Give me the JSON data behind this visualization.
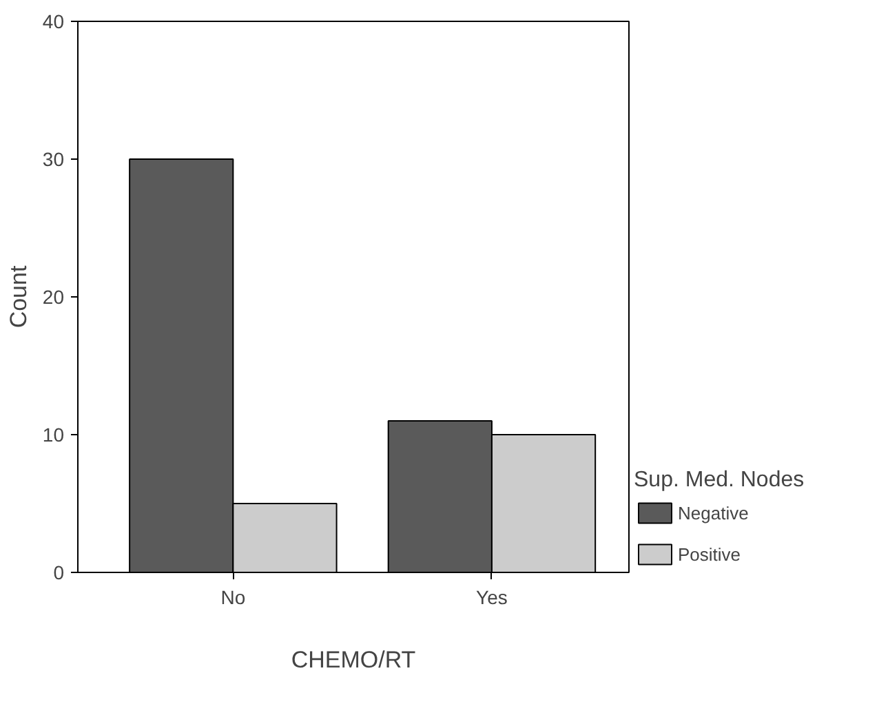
{
  "chart_data": {
    "type": "bar",
    "xlabel": "CHEMO/RT",
    "ylabel": "Count",
    "legend_title": "Sup. Med. Nodes",
    "categories": [
      "No",
      "Yes"
    ],
    "series": [
      {
        "name": "Negative",
        "color": "#5a5a5a",
        "values": [
          30,
          11
        ]
      },
      {
        "name": "Positive",
        "color": "#cccccc",
        "values": [
          5,
          10
        ]
      }
    ],
    "ylim": [
      0,
      40
    ],
    "yticks": [
      0,
      10,
      20,
      30,
      40
    ],
    "grid": false,
    "legend": "right"
  }
}
